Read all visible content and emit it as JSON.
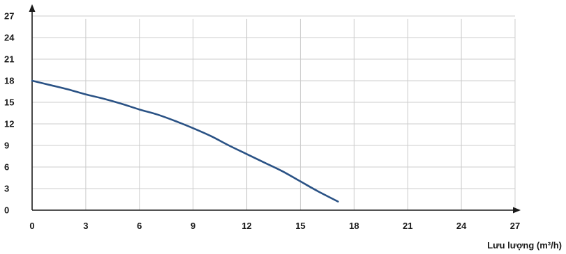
{
  "chart_data": {
    "type": "line",
    "title": "",
    "xlabel": "Lưu lượng (m³/h)",
    "ylabel": "",
    "xlim": [
      0,
      27
    ],
    "ylim": [
      0,
      27
    ],
    "x_ticks": [
      0,
      3,
      6,
      9,
      12,
      15,
      18,
      21,
      24,
      27
    ],
    "y_ticks": [
      0,
      3,
      6,
      9,
      12,
      15,
      18,
      21,
      24,
      27
    ],
    "grid": true,
    "colors": {
      "line": "#2a5285",
      "grid": "#cccccc",
      "axis": "#1a1a1a"
    },
    "series": [
      {
        "x": [
          0,
          1,
          2,
          3,
          4,
          5,
          6,
          7,
          8,
          9,
          10,
          11,
          12,
          13,
          14,
          15,
          16,
          17.1
        ],
        "values": [
          18.0,
          17.4,
          16.8,
          16.1,
          15.5,
          14.8,
          14.0,
          13.3,
          12.4,
          11.4,
          10.3,
          9.0,
          7.8,
          6.6,
          5.4,
          4.0,
          2.6,
          1.2
        ]
      }
    ]
  }
}
